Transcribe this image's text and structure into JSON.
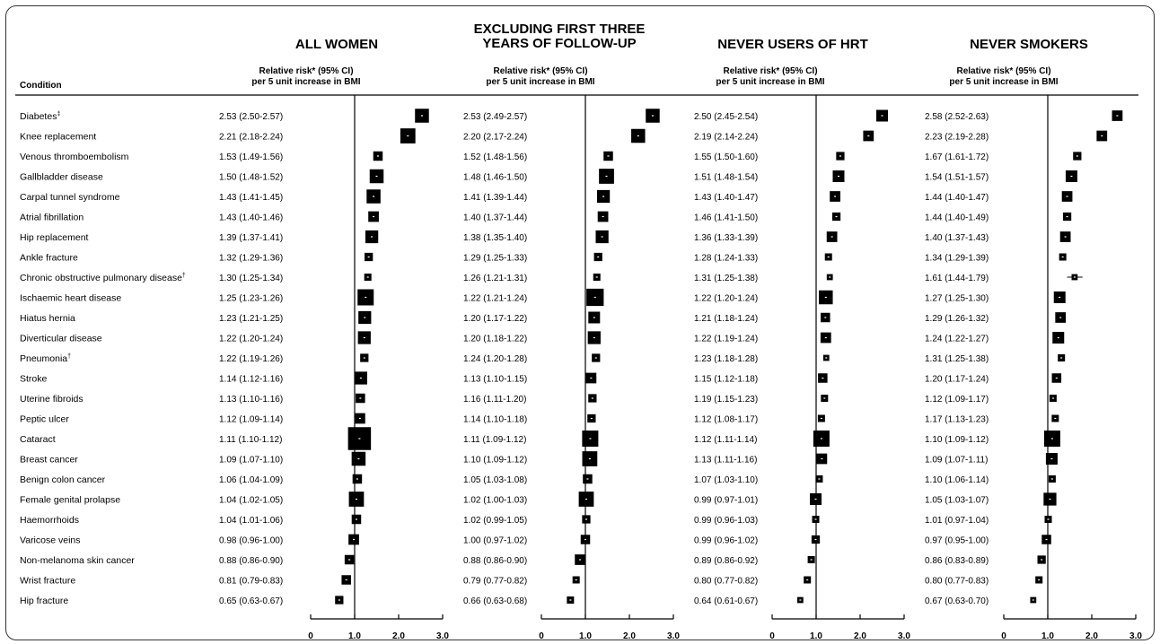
{
  "chart_data": {
    "type": "forest",
    "header": {
      "condition_label": "Condition"
    },
    "x_ticks": [
      "0",
      "1.0",
      "2.0",
      "3.0"
    ],
    "x_range": [
      0,
      3
    ],
    "reference_line": 1.0,
    "panels": [
      {
        "title_lines": [
          "ALL WOMEN"
        ],
        "subtitle_lines": [
          "Relative risk* (95% CI)",
          "per 5 unit increase in BMI"
        ],
        "size_scale": [
          10,
          11,
          6,
          10,
          10,
          7,
          9,
          5,
          4,
          12,
          9,
          9,
          5,
          9,
          6,
          7,
          18,
          10,
          6,
          11,
          6,
          7,
          6,
          6,
          5
        ],
        "values": [
          {
            "rr": 2.53,
            "label": "2.53 (2.50-2.57)"
          },
          {
            "rr": 2.21,
            "label": "2.21 (2.18-2.24)"
          },
          {
            "rr": 1.53,
            "label": "1.53 (1.49-1.56)"
          },
          {
            "rr": 1.5,
            "label": "1.50 (1.48-1.52)"
          },
          {
            "rr": 1.43,
            "label": "1.43 (1.41-1.45)"
          },
          {
            "rr": 1.43,
            "label": "1.43 (1.40-1.46)"
          },
          {
            "rr": 1.39,
            "label": "1.39 (1.37-1.41)"
          },
          {
            "rr": 1.32,
            "label": "1.32 (1.29-1.36)"
          },
          {
            "rr": 1.3,
            "label": "1.30 (1.25-1.34)"
          },
          {
            "rr": 1.25,
            "label": "1.25 (1.23-1.26)"
          },
          {
            "rr": 1.23,
            "label": "1.23 (1.21-1.25)"
          },
          {
            "rr": 1.22,
            "label": "1.22 (1.20-1.24)"
          },
          {
            "rr": 1.22,
            "label": "1.22 (1.19-1.26)"
          },
          {
            "rr": 1.14,
            "label": "1.14 (1.12-1.16)"
          },
          {
            "rr": 1.13,
            "label": "1.13 (1.10-1.16)"
          },
          {
            "rr": 1.12,
            "label": "1.12 (1.09-1.14)"
          },
          {
            "rr": 1.11,
            "label": "1.11 (1.10-1.12)"
          },
          {
            "rr": 1.09,
            "label": "1.09 (1.07-1.10)"
          },
          {
            "rr": 1.06,
            "label": "1.06 (1.04-1.09)"
          },
          {
            "rr": 1.04,
            "label": "1.04 (1.02-1.05)"
          },
          {
            "rr": 1.04,
            "label": "1.04 (1.01-1.06)"
          },
          {
            "rr": 0.98,
            "label": "0.98 (0.96-1.00)"
          },
          {
            "rr": 0.88,
            "label": "0.88 (0.86-0.90)"
          },
          {
            "rr": 0.81,
            "label": "0.81 (0.79-0.83)"
          },
          {
            "rr": 0.65,
            "label": "0.65 (0.63-0.67)"
          }
        ]
      },
      {
        "title_lines": [
          "EXCLUDING FIRST THREE",
          "YEARS OF FOLLOW-UP"
        ],
        "subtitle_lines": [
          "Relative risk* (95% CI)",
          "per 5 unit increase in BMI"
        ],
        "size_scale": [
          10,
          10,
          6,
          11,
          9,
          7,
          9,
          5,
          4,
          13,
          8,
          9,
          5,
          7,
          5,
          5,
          12,
          11,
          6,
          11,
          5,
          6,
          7,
          4,
          4
        ],
        "values": [
          {
            "rr": 2.53,
            "label": "2.53 (2.49-2.57)"
          },
          {
            "rr": 2.2,
            "label": "2.20 (2.17-2.24)"
          },
          {
            "rr": 1.52,
            "label": "1.52 (1.48-1.56)"
          },
          {
            "rr": 1.48,
            "label": "1.48 (1.46-1.50)"
          },
          {
            "rr": 1.41,
            "label": "1.41 (1.39-1.44)"
          },
          {
            "rr": 1.4,
            "label": "1.40 (1.37-1.44)"
          },
          {
            "rr": 1.38,
            "label": "1.38 (1.35-1.40)"
          },
          {
            "rr": 1.29,
            "label": "1.29 (1.25-1.33)"
          },
          {
            "rr": 1.26,
            "label": "1.26 (1.21-1.31)"
          },
          {
            "rr": 1.22,
            "label": "1.22 (1.21-1.24)"
          },
          {
            "rr": 1.2,
            "label": "1.20 (1.17-1.22)"
          },
          {
            "rr": 1.2,
            "label": "1.20 (1.18-1.22)"
          },
          {
            "rr": 1.24,
            "label": "1.24 (1.20-1.28)"
          },
          {
            "rr": 1.13,
            "label": "1.13 (1.10-1.15)"
          },
          {
            "rr": 1.16,
            "label": "1.16 (1.11-1.20)"
          },
          {
            "rr": 1.14,
            "label": "1.14 (1.10-1.18)"
          },
          {
            "rr": 1.11,
            "label": "1.11 (1.09-1.12)"
          },
          {
            "rr": 1.1,
            "label": "1.10 (1.09-1.12)"
          },
          {
            "rr": 1.05,
            "label": "1.05 (1.03-1.08)"
          },
          {
            "rr": 1.02,
            "label": "1.02 (1.00-1.03)"
          },
          {
            "rr": 1.02,
            "label": "1.02 (0.99-1.05)"
          },
          {
            "rr": 1.0,
            "label": "1.00 (0.97-1.02)"
          },
          {
            "rr": 0.88,
            "label": "0.88 (0.86-0.90)"
          },
          {
            "rr": 0.79,
            "label": "0.79 (0.77-0.82)"
          },
          {
            "rr": 0.66,
            "label": "0.66 (0.63-0.68)"
          }
        ]
      },
      {
        "title_lines": [
          "NEVER USERS OF HRT"
        ],
        "subtitle_lines": [
          "Relative risk* (95% CI)",
          "per 5 unit increase in BMI"
        ],
        "size_scale": [
          8,
          7,
          5,
          8,
          7,
          5,
          7,
          4,
          3,
          10,
          6,
          7,
          3,
          6,
          4,
          4,
          12,
          7,
          4,
          8,
          4,
          5,
          4,
          4,
          3
        ],
        "values": [
          {
            "rr": 2.5,
            "label": "2.50 (2.45-2.54)"
          },
          {
            "rr": 2.19,
            "label": "2.19 (2.14-2.24)"
          },
          {
            "rr": 1.55,
            "label": "1.55 (1.50-1.60)"
          },
          {
            "rr": 1.51,
            "label": "1.51 (1.48-1.54)"
          },
          {
            "rr": 1.43,
            "label": "1.43 (1.40-1.47)"
          },
          {
            "rr": 1.46,
            "label": "1.46 (1.41-1.50)"
          },
          {
            "rr": 1.36,
            "label": "1.36 (1.33-1.39)"
          },
          {
            "rr": 1.28,
            "label": "1.28 (1.24-1.33)"
          },
          {
            "rr": 1.31,
            "label": "1.31 (1.25-1.38)"
          },
          {
            "rr": 1.22,
            "label": "1.22 (1.20-1.24)"
          },
          {
            "rr": 1.21,
            "label": "1.21 (1.18-1.24)"
          },
          {
            "rr": 1.22,
            "label": "1.22 (1.19-1.24)"
          },
          {
            "rr": 1.23,
            "label": "1.23 (1.18-1.28)"
          },
          {
            "rr": 1.15,
            "label": "1.15 (1.12-1.18)"
          },
          {
            "rr": 1.19,
            "label": "1.19 (1.15-1.23)"
          },
          {
            "rr": 1.12,
            "label": "1.12 (1.08-1.17)"
          },
          {
            "rr": 1.12,
            "label": "1.12 (1.11-1.14)"
          },
          {
            "rr": 1.13,
            "label": "1.13 (1.11-1.16)"
          },
          {
            "rr": 1.07,
            "label": "1.07 (1.03-1.10)"
          },
          {
            "rr": 0.99,
            "label": "0.99 (0.97-1.01)"
          },
          {
            "rr": 0.99,
            "label": "0.99 (0.96-1.03)"
          },
          {
            "rr": 0.99,
            "label": "0.99 (0.96-1.02)"
          },
          {
            "rr": 0.89,
            "label": "0.89 (0.86-0.92)"
          },
          {
            "rr": 0.8,
            "label": "0.80 (0.77-0.82)"
          },
          {
            "rr": 0.64,
            "label": "0.64 (0.61-0.67)"
          }
        ]
      },
      {
        "title_lines": [
          "NEVER SMOKERS"
        ],
        "subtitle_lines": [
          "Relative risk* (95% CI)",
          "per 5 unit increase in BMI"
        ],
        "size_scale": [
          7,
          7,
          5,
          8,
          7,
          5,
          7,
          4,
          3,
          8,
          7,
          8,
          4,
          6,
          4,
          4,
          12,
          8,
          4,
          9,
          4,
          6,
          5,
          4,
          3
        ],
        "values": [
          {
            "rr": 2.58,
            "label": "2.58 (2.52-2.63)"
          },
          {
            "rr": 2.23,
            "label": "2.23 (2.19-2.28)"
          },
          {
            "rr": 1.67,
            "label": "1.67 (1.61-1.72)"
          },
          {
            "rr": 1.54,
            "label": "1.54 (1.51-1.57)"
          },
          {
            "rr": 1.44,
            "label": "1.44 (1.40-1.47)"
          },
          {
            "rr": 1.44,
            "label": "1.44 (1.40-1.49)"
          },
          {
            "rr": 1.4,
            "label": "1.40 (1.37-1.43)"
          },
          {
            "rr": 1.34,
            "label": "1.34 (1.29-1.39)"
          },
          {
            "rr": 1.61,
            "label": "1.61 (1.44-1.79)"
          },
          {
            "rr": 1.27,
            "label": "1.27 (1.25-1.30)"
          },
          {
            "rr": 1.29,
            "label": "1.29 (1.26-1.32)"
          },
          {
            "rr": 1.24,
            "label": "1.24 (1.22-1.27)"
          },
          {
            "rr": 1.31,
            "label": "1.31 (1.25-1.38)"
          },
          {
            "rr": 1.2,
            "label": "1.20 (1.17-1.24)"
          },
          {
            "rr": 1.12,
            "label": "1.12 (1.09-1.17)"
          },
          {
            "rr": 1.17,
            "label": "1.17 (1.13-1.23)"
          },
          {
            "rr": 1.1,
            "label": "1.10 (1.09-1.12)"
          },
          {
            "rr": 1.09,
            "label": "1.09 (1.07-1.11)"
          },
          {
            "rr": 1.1,
            "label": "1.10 (1.06-1.14)"
          },
          {
            "rr": 1.05,
            "label": "1.05 (1.03-1.07)"
          },
          {
            "rr": 1.01,
            "label": "1.01 (0.97-1.04)"
          },
          {
            "rr": 0.97,
            "label": "0.97 (0.95-1.00)"
          },
          {
            "rr": 0.86,
            "label": "0.86 (0.83-0.89)"
          },
          {
            "rr": 0.8,
            "label": "0.80 (0.77-0.83)"
          },
          {
            "rr": 0.67,
            "label": "0.67 (0.63-0.70)"
          }
        ]
      }
    ],
    "conditions": [
      {
        "name": "Diabetes",
        "sup": "‡"
      },
      {
        "name": "Knee replacement",
        "sup": ""
      },
      {
        "name": "Venous thromboembolism",
        "sup": ""
      },
      {
        "name": "Gallbladder disease",
        "sup": ""
      },
      {
        "name": "Carpal tunnel syndrome",
        "sup": ""
      },
      {
        "name": "Atrial fibrillation",
        "sup": ""
      },
      {
        "name": "Hip replacement",
        "sup": ""
      },
      {
        "name": "Ankle fracture",
        "sup": ""
      },
      {
        "name": "Chronic obstructive pulmonary disease",
        "sup": "†"
      },
      {
        "name": "Ischaemic heart disease",
        "sup": ""
      },
      {
        "name": "Hiatus hernia",
        "sup": ""
      },
      {
        "name": "Diverticular disease",
        "sup": ""
      },
      {
        "name": "Pneumonia",
        "sup": "†"
      },
      {
        "name": "Stroke",
        "sup": ""
      },
      {
        "name": "Uterine fibroids",
        "sup": ""
      },
      {
        "name": "Peptic ulcer",
        "sup": ""
      },
      {
        "name": "Cataract",
        "sup": ""
      },
      {
        "name": "Breast cancer",
        "sup": ""
      },
      {
        "name": "Benign colon cancer",
        "sup": ""
      },
      {
        "name": "Female genital prolapse",
        "sup": ""
      },
      {
        "name": "Haemorrhoids",
        "sup": ""
      },
      {
        "name": "Varicose veins",
        "sup": ""
      },
      {
        "name": "Non-melanoma skin cancer",
        "sup": ""
      },
      {
        "name": "Wrist fracture",
        "sup": ""
      },
      {
        "name": "Hip fracture",
        "sup": ""
      }
    ],
    "colors": {
      "marker": "#000000",
      "text": "#000000",
      "frame": "#333333"
    }
  }
}
